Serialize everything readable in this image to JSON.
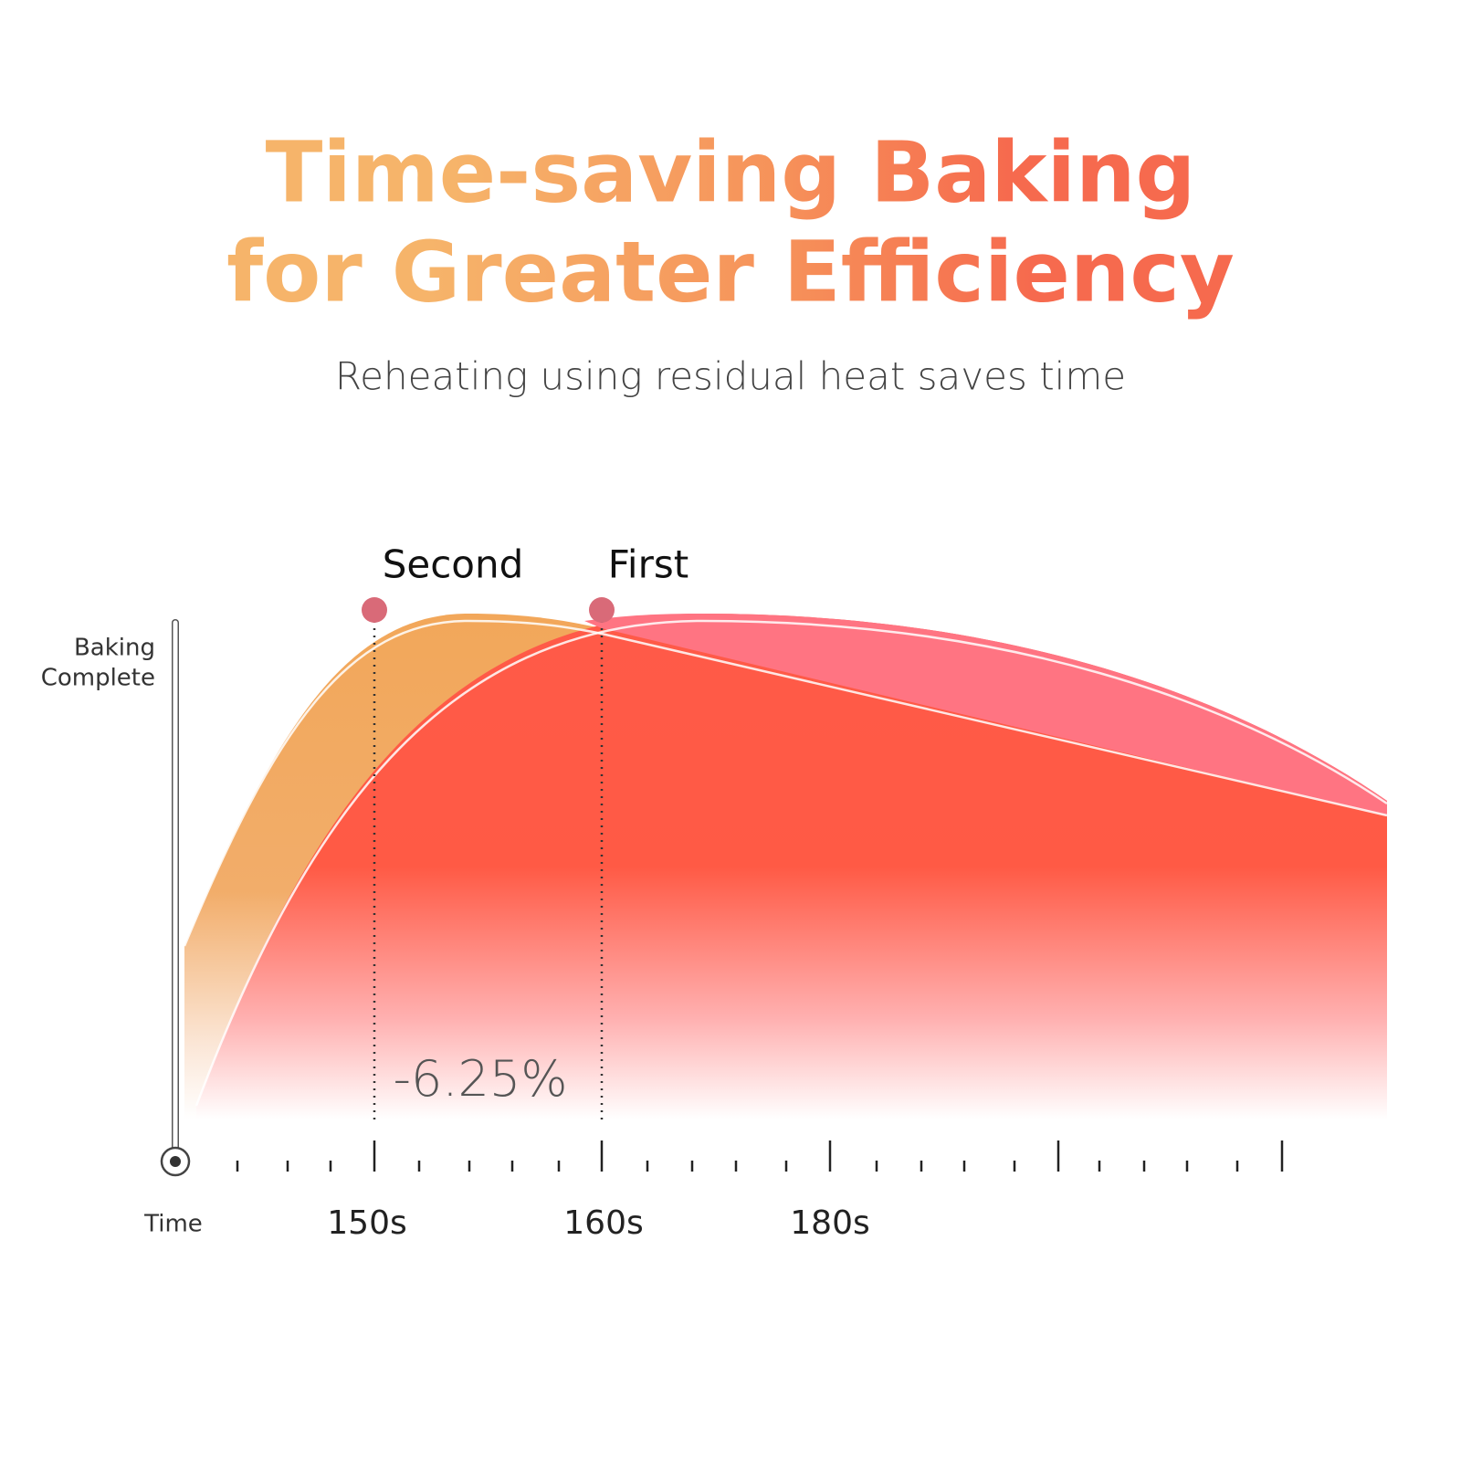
{
  "header": {
    "title_line1": "Time-saving Baking",
    "title_line2": "for Greater Efficiency",
    "subtitle": "Reheating using residual heat saves time"
  },
  "graph": {
    "y_label_line1": "Baking",
    "y_label_line2": "Complete",
    "x_label": "Time",
    "markers": [
      "Second",
      "First"
    ],
    "ticks": [
      "150s",
      "160s",
      "180s"
    ],
    "reduction": "-6.25%"
  }
}
